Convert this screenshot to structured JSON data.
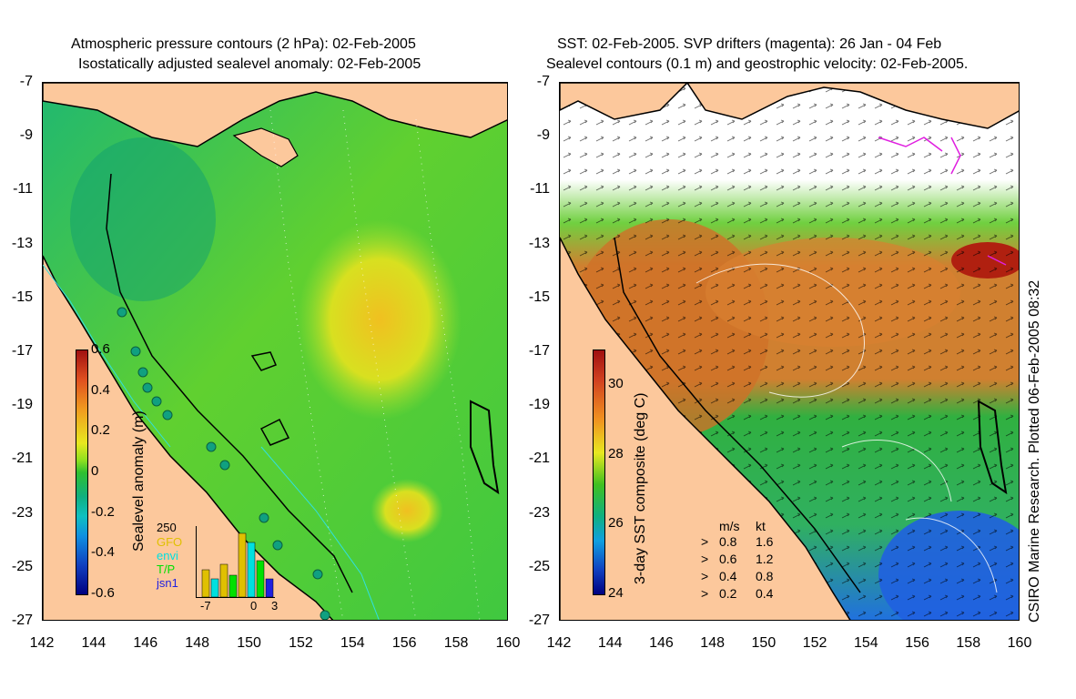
{
  "left_panel": {
    "title_line1": "Atmospheric pressure contours (2 hPa): 02-Feb-2005",
    "title_line2": "Isostatically adjusted sealevel anomaly: 02-Feb-2005",
    "colorbar": {
      "label": "Sealevel anomaly (m)",
      "ticks": [
        "0.6",
        "0.4",
        "0.2",
        "0",
        "-0.2",
        "-0.4",
        "-0.6"
      ],
      "range": [
        -0.6,
        0.6
      ]
    },
    "histogram": {
      "ymax_label": "250",
      "legend": [
        {
          "name": "GFO",
          "color": "#e0c000"
        },
        {
          "name": "envi",
          "color": "#00e0e0"
        },
        {
          "name": "T/P",
          "color": "#00e000"
        },
        {
          "name": "jsn1",
          "color": "#2020e0"
        }
      ],
      "xticks": [
        "-7",
        "0",
        "3"
      ]
    }
  },
  "right_panel": {
    "title_line1": "SST: 02-Feb-2005. SVP drifters (magenta): 26 Jan - 04 Feb",
    "title_line2": "Sealevel contours (0.1 m) and geostrophic velocity: 02-Feb-2005.",
    "colorbar": {
      "label": "3-day SST composite (deg C)",
      "ticks": [
        "30",
        "28",
        "26",
        "24"
      ],
      "range": [
        24,
        31
      ]
    },
    "velocity_legend": {
      "header_ms": "m/s",
      "header_kt": "kt",
      "rows": [
        {
          "ms": "0.8",
          "kt": "1.6"
        },
        {
          "ms": "0.6",
          "kt": "1.2"
        },
        {
          "ms": "0.4",
          "kt": "0.8"
        },
        {
          "ms": "0.2",
          "kt": "0.4"
        }
      ]
    },
    "credit": "CSIRO Marine Research. Plotted 06-Feb-2005 08:32"
  },
  "axes": {
    "lat_ticks": [
      "-7",
      "-9",
      "-11",
      "-13",
      "-15",
      "-17",
      "-19",
      "-21",
      "-23",
      "-25",
      "-27"
    ],
    "lon_ticks": [
      "142",
      "144",
      "146",
      "148",
      "150",
      "152",
      "154",
      "156",
      "158",
      "160"
    ],
    "lon_range": [
      142,
      160
    ],
    "lat_range": [
      -27,
      -7
    ]
  },
  "colors": {
    "land": "#fcc89c",
    "ocean_low": "#10a878",
    "ocean_mid": "#40d030",
    "ocean_high": "#e8e820",
    "warm_sst": "#e07020",
    "cool_sst": "#2080e0"
  }
}
